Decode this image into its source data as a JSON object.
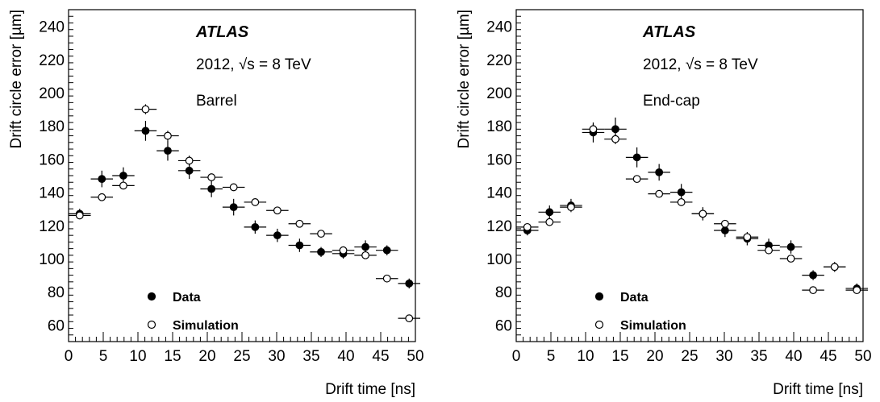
{
  "chart_data": [
    {
      "type": "scatter",
      "panel": "left",
      "experiment": "ATLAS",
      "energy_prefix": "2012, ",
      "energy_sqrt": "s",
      "energy_suffix": " = 8 TeV",
      "region": "Barrel",
      "xlabel": "Drift time [ns]",
      "ylabel": "Drift circle error [µm]",
      "xlim": [
        0,
        50
      ],
      "ylim": [
        50,
        250
      ],
      "xticks": [
        0,
        5,
        10,
        15,
        20,
        25,
        30,
        35,
        40,
        45,
        50
      ],
      "yticks": [
        60,
        80,
        100,
        120,
        140,
        160,
        180,
        200,
        220,
        240
      ],
      "grid": false,
      "legend_position": "bottom-left",
      "series": [
        {
          "name": "Data",
          "marker": "filled-circle",
          "points": [
            {
              "x": 1.6,
              "y": 127,
              "xerr": 1.6,
              "yerr": 3
            },
            {
              "x": 4.8,
              "y": 148,
              "xerr": 1.6,
              "yerr": 5
            },
            {
              "x": 7.9,
              "y": 150,
              "xerr": 1.6,
              "yerr": 5
            },
            {
              "x": 11.1,
              "y": 177,
              "xerr": 1.6,
              "yerr": 6
            },
            {
              "x": 14.3,
              "y": 165,
              "xerr": 1.6,
              "yerr": 6
            },
            {
              "x": 17.4,
              "y": 153,
              "xerr": 1.6,
              "yerr": 5
            },
            {
              "x": 20.6,
              "y": 142,
              "xerr": 1.6,
              "yerr": 5
            },
            {
              "x": 23.8,
              "y": 131,
              "xerr": 1.6,
              "yerr": 5
            },
            {
              "x": 26.9,
              "y": 119,
              "xerr": 1.6,
              "yerr": 4
            },
            {
              "x": 30.1,
              "y": 114,
              "xerr": 1.6,
              "yerr": 4
            },
            {
              "x": 33.3,
              "y": 108,
              "xerr": 1.6,
              "yerr": 4
            },
            {
              "x": 36.4,
              "y": 104,
              "xerr": 1.6,
              "yerr": 3
            },
            {
              "x": 39.6,
              "y": 103,
              "xerr": 1.6,
              "yerr": 3
            },
            {
              "x": 42.8,
              "y": 107,
              "xerr": 1.6,
              "yerr": 4
            },
            {
              "x": 45.9,
              "y": 105,
              "xerr": 1.6,
              "yerr": 3
            },
            {
              "x": 49.1,
              "y": 85,
              "xerr": 1.6,
              "yerr": 3
            }
          ]
        },
        {
          "name": "Simulation",
          "marker": "open-circle",
          "points": [
            {
              "x": 1.6,
              "y": 126,
              "xerr": 1.6,
              "yerr": 2
            },
            {
              "x": 4.8,
              "y": 137,
              "xerr": 1.6,
              "yerr": 2
            },
            {
              "x": 7.9,
              "y": 144,
              "xerr": 1.6,
              "yerr": 2
            },
            {
              "x": 11.1,
              "y": 190,
              "xerr": 1.6,
              "yerr": 3
            },
            {
              "x": 14.3,
              "y": 174,
              "xerr": 1.6,
              "yerr": 3
            },
            {
              "x": 17.4,
              "y": 159,
              "xerr": 1.6,
              "yerr": 3
            },
            {
              "x": 20.6,
              "y": 149,
              "xerr": 1.6,
              "yerr": 2
            },
            {
              "x": 23.8,
              "y": 143,
              "xerr": 1.6,
              "yerr": 2
            },
            {
              "x": 26.9,
              "y": 134,
              "xerr": 1.6,
              "yerr": 2
            },
            {
              "x": 30.1,
              "y": 129,
              "xerr": 1.6,
              "yerr": 2
            },
            {
              "x": 33.3,
              "y": 121,
              "xerr": 1.6,
              "yerr": 2
            },
            {
              "x": 36.4,
              "y": 115,
              "xerr": 1.6,
              "yerr": 2
            },
            {
              "x": 39.6,
              "y": 105,
              "xerr": 1.6,
              "yerr": 2
            },
            {
              "x": 42.8,
              "y": 102,
              "xerr": 1.6,
              "yerr": 2
            },
            {
              "x": 45.9,
              "y": 88,
              "xerr": 1.6,
              "yerr": 2
            },
            {
              "x": 49.1,
              "y": 64,
              "xerr": 1.6,
              "yerr": 2
            }
          ]
        }
      ]
    },
    {
      "type": "scatter",
      "panel": "right",
      "experiment": "ATLAS",
      "energy_prefix": "2012, ",
      "energy_sqrt": "s",
      "energy_suffix": " = 8 TeV",
      "region": "End-cap",
      "xlabel": "Drift time [ns]",
      "ylabel": "Drift circle error [µm]",
      "xlim": [
        0,
        50
      ],
      "ylim": [
        50,
        250
      ],
      "xticks": [
        0,
        5,
        10,
        15,
        20,
        25,
        30,
        35,
        40,
        45,
        50
      ],
      "yticks": [
        60,
        80,
        100,
        120,
        140,
        160,
        180,
        200,
        220,
        240
      ],
      "grid": false,
      "legend_position": "bottom-left",
      "series": [
        {
          "name": "Data",
          "marker": "filled-circle",
          "points": [
            {
              "x": 1.6,
              "y": 117,
              "xerr": 1.6,
              "yerr": 3
            },
            {
              "x": 4.8,
              "y": 128,
              "xerr": 1.6,
              "yerr": 4
            },
            {
              "x": 7.9,
              "y": 132,
              "xerr": 1.6,
              "yerr": 4
            },
            {
              "x": 11.1,
              "y": 176,
              "xerr": 1.6,
              "yerr": 6
            },
            {
              "x": 14.3,
              "y": 178,
              "xerr": 1.6,
              "yerr": 7
            },
            {
              "x": 17.4,
              "y": 161,
              "xerr": 1.6,
              "yerr": 6
            },
            {
              "x": 20.6,
              "y": 152,
              "xerr": 1.6,
              "yerr": 5
            },
            {
              "x": 23.8,
              "y": 140,
              "xerr": 1.6,
              "yerr": 5
            },
            {
              "x": 26.9,
              "y": 127,
              "xerr": 1.6,
              "yerr": 4
            },
            {
              "x": 30.1,
              "y": 117,
              "xerr": 1.6,
              "yerr": 4
            },
            {
              "x": 33.3,
              "y": 112,
              "xerr": 1.6,
              "yerr": 4
            },
            {
              "x": 36.4,
              "y": 108,
              "xerr": 1.6,
              "yerr": 4
            },
            {
              "x": 39.6,
              "y": 107,
              "xerr": 1.6,
              "yerr": 4
            },
            {
              "x": 42.8,
              "y": 90,
              "xerr": 1.6,
              "yerr": 3
            },
            {
              "x": 45.9,
              "y": 95,
              "xerr": 1.6,
              "yerr": 3
            },
            {
              "x": 49.1,
              "y": 82,
              "xerr": 1.6,
              "yerr": 3
            }
          ]
        },
        {
          "name": "Simulation",
          "marker": "open-circle",
          "points": [
            {
              "x": 1.6,
              "y": 119,
              "xerr": 1.6,
              "yerr": 2
            },
            {
              "x": 4.8,
              "y": 122,
              "xerr": 1.6,
              "yerr": 2
            },
            {
              "x": 7.9,
              "y": 131,
              "xerr": 1.6,
              "yerr": 2
            },
            {
              "x": 11.1,
              "y": 178,
              "xerr": 1.6,
              "yerr": 3
            },
            {
              "x": 14.3,
              "y": 172,
              "xerr": 1.6,
              "yerr": 3
            },
            {
              "x": 17.4,
              "y": 148,
              "xerr": 1.6,
              "yerr": 2
            },
            {
              "x": 20.6,
              "y": 139,
              "xerr": 1.6,
              "yerr": 2
            },
            {
              "x": 23.8,
              "y": 134,
              "xerr": 1.6,
              "yerr": 2
            },
            {
              "x": 26.9,
              "y": 127,
              "xerr": 1.6,
              "yerr": 2
            },
            {
              "x": 30.1,
              "y": 121,
              "xerr": 1.6,
              "yerr": 2
            },
            {
              "x": 33.3,
              "y": 113,
              "xerr": 1.6,
              "yerr": 2
            },
            {
              "x": 36.4,
              "y": 105,
              "xerr": 1.6,
              "yerr": 2
            },
            {
              "x": 39.6,
              "y": 100,
              "xerr": 1.6,
              "yerr": 2
            },
            {
              "x": 42.8,
              "y": 81,
              "xerr": 1.6,
              "yerr": 2
            },
            {
              "x": 45.9,
              "y": 95,
              "xerr": 1.6,
              "yerr": 2
            },
            {
              "x": 49.1,
              "y": 81,
              "xerr": 1.6,
              "yerr": 2
            }
          ]
        }
      ]
    }
  ]
}
